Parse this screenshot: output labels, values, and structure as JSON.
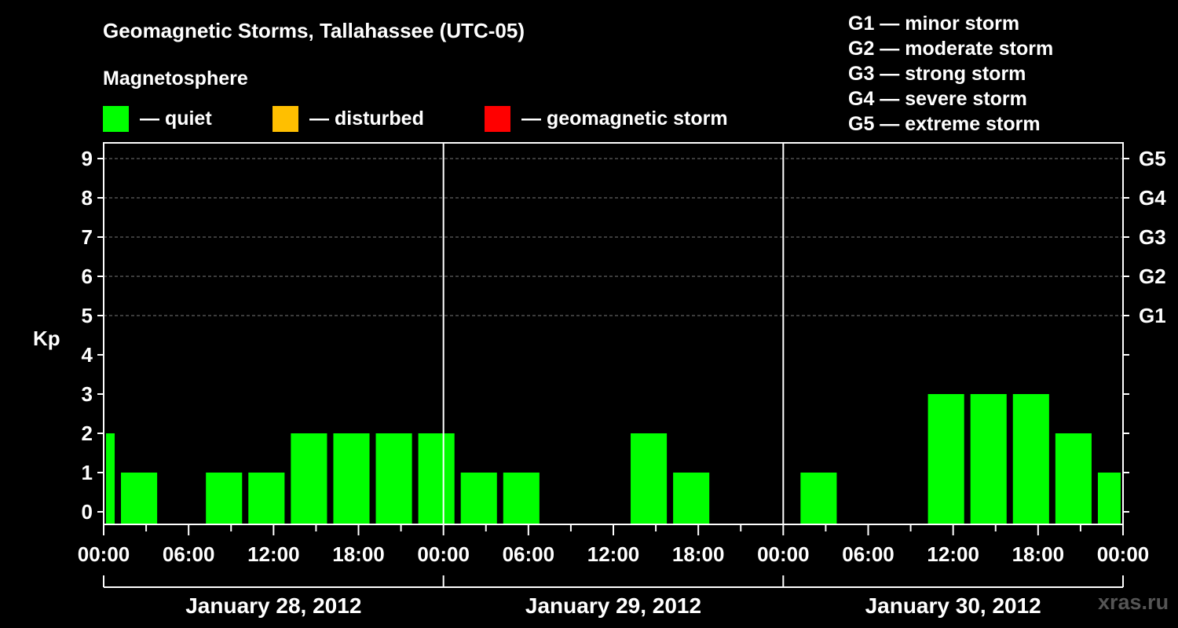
{
  "header": {
    "title": "Geomagnetic Storms, Tallahassee (UTC-05)",
    "subtitle": "Magnetosphere"
  },
  "legend": [
    {
      "color": "#00ff00",
      "label": "— quiet"
    },
    {
      "color": "#ffbf00",
      "label": "— disturbed"
    },
    {
      "color": "#ff0000",
      "label": "— geomagnetic storm"
    }
  ],
  "storm_scale": [
    "G1 — minor storm",
    "G2 — moderate storm",
    "G3 — strong storm",
    "G4 — severe storm",
    "G5 — extreme storm"
  ],
  "watermark": "xras.ru",
  "chart_data": {
    "type": "bar",
    "title": "Geomagnetic Storms, Tallahassee (UTC-05)",
    "ylabel": "Kp",
    "ylim": [
      0,
      9
    ],
    "yticks": [
      0,
      1,
      2,
      3,
      4,
      5,
      6,
      7,
      8,
      9
    ],
    "right_axis_labels": [
      {
        "kp": 5,
        "label": "G1"
      },
      {
        "kp": 6,
        "label": "G2"
      },
      {
        "kp": 7,
        "label": "G3"
      },
      {
        "kp": 8,
        "label": "G4"
      },
      {
        "kp": 9,
        "label": "G5"
      }
    ],
    "x_range_hours": [
      0,
      72
    ],
    "x_tick_labels": [
      "00:00",
      "06:00",
      "12:00",
      "18:00",
      "00:00",
      "06:00",
      "12:00",
      "18:00",
      "00:00",
      "06:00",
      "12:00",
      "18:00",
      "00:00"
    ],
    "x_tick_hours": [
      0,
      6,
      12,
      18,
      24,
      30,
      36,
      42,
      48,
      54,
      60,
      66,
      72
    ],
    "days": [
      "January 28, 2012",
      "January 29, 2012",
      "January 30, 2012"
    ],
    "bar_interval_hours": 3,
    "bar_offset_hours": -2,
    "values": [
      2,
      1,
      0,
      1,
      1,
      2,
      2,
      2,
      2,
      1,
      1,
      0,
      0,
      2,
      1,
      0,
      0,
      1,
      0,
      0,
      3,
      3,
      3,
      2,
      1
    ],
    "colors": {
      "quiet": "#00ff00",
      "disturbed": "#ffbf00",
      "storm": "#ff0000"
    },
    "grid": "dashed at Kp 5-9"
  }
}
